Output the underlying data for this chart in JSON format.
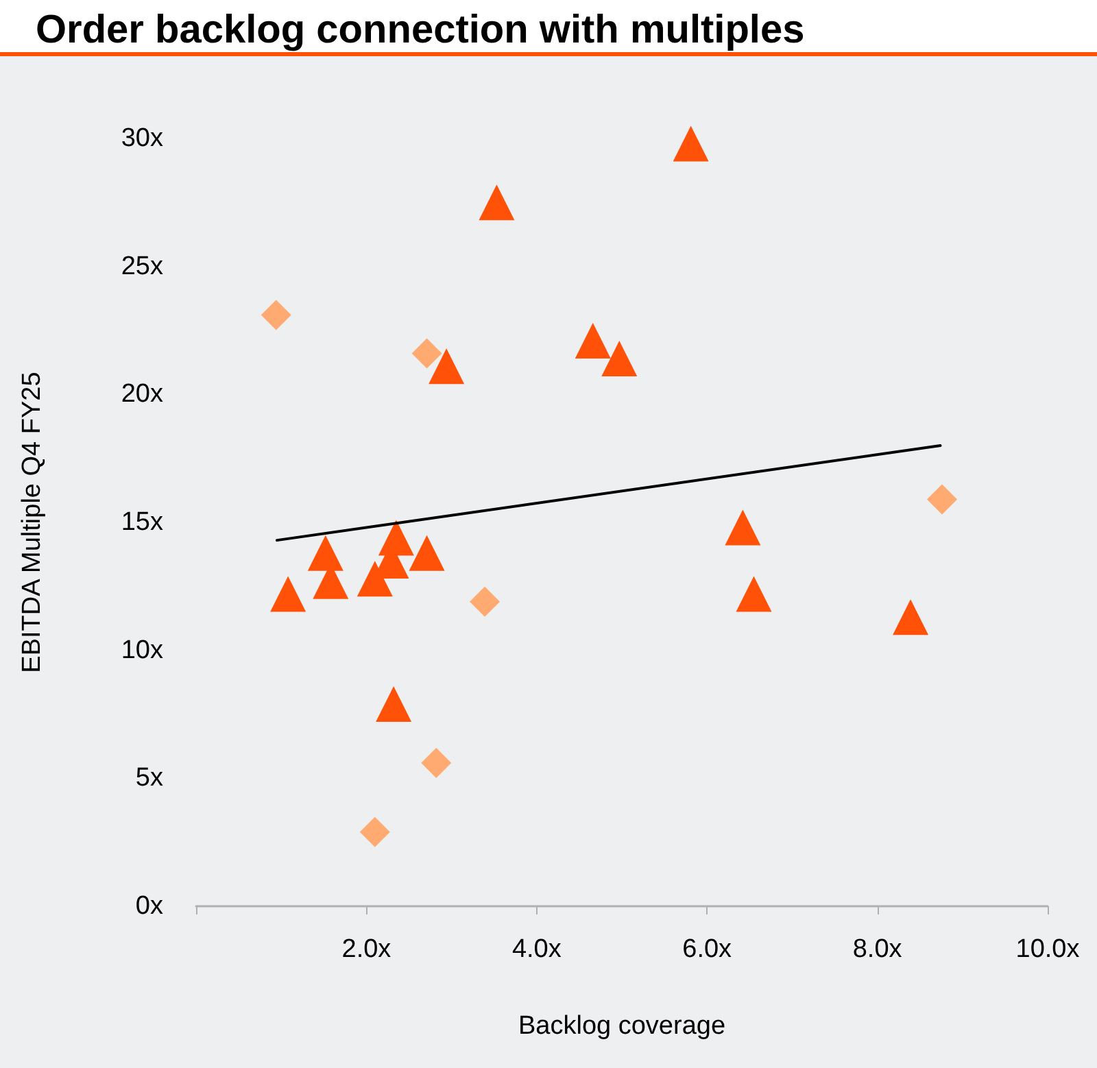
{
  "chart_data": {
    "type": "scatter",
    "title": "Order backlog connection with multiples",
    "xlabel": "Backlog coverage",
    "ylabel": "EBITDA Multiple Q4 FY25",
    "xlim": [
      0,
      10
    ],
    "xticks": [
      {
        "value": 0,
        "label": null
      },
      {
        "value": 2,
        "label": "2.0x"
      },
      {
        "value": 4,
        "label": "4.0x"
      },
      {
        "value": 6,
        "label": "6.0x"
      },
      {
        "value": 8,
        "label": "8.0x"
      },
      {
        "value": 10,
        "label": "10.0x"
      }
    ],
    "ylim": [
      0,
      30
    ],
    "yticks": [
      {
        "value": 0,
        "label": "0x"
      },
      {
        "value": 5,
        "label": "5x"
      },
      {
        "value": 10,
        "label": "10x"
      },
      {
        "value": 15,
        "label": "15x"
      },
      {
        "value": 20,
        "label": "20x"
      },
      {
        "value": 25,
        "label": "25x"
      },
      {
        "value": 30,
        "label": "30x"
      }
    ],
    "grid": false,
    "series": [
      {
        "marker": "triangle",
        "color": "#ff5208",
        "x": [
          5.81,
          3.53,
          4.66,
          4.97,
          2.94,
          6.42,
          6.55,
          8.39,
          1.08,
          1.52,
          1.58,
          2.1,
          2.35,
          2.29,
          2.71,
          2.32
        ],
        "values": [
          29.8,
          27.5,
          22.1,
          21.4,
          21.1,
          14.8,
          12.2,
          11.3,
          12.2,
          13.8,
          12.7,
          12.8,
          14.4,
          13.5,
          13.8,
          7.9
        ]
      },
      {
        "marker": "diamond",
        "color": "#ffaa70",
        "x": [
          0.94,
          2.71,
          3.39,
          8.76,
          2.82,
          2.1
        ],
        "values": [
          23.1,
          21.6,
          11.9,
          15.9,
          5.6,
          2.9
        ]
      },
      {
        "type": "line",
        "marker": "none",
        "line_style": "solid",
        "color": "#000000",
        "x": [
          0.95,
          8.74
        ],
        "values": [
          14.3,
          18.0
        ]
      }
    ]
  }
}
